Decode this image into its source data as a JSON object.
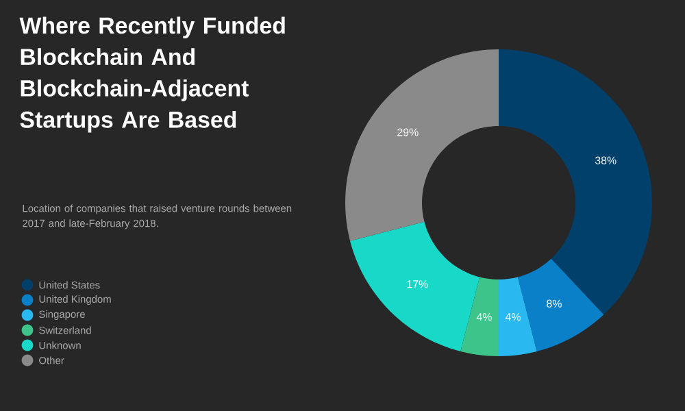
{
  "chart_data": {
    "type": "donut",
    "title": "Where Recently Funded Blockchain And Blockchain-Adjacent Startups Are Based",
    "subtitle": "Location of companies that raised venture rounds between 2017 and late-February 2018.",
    "categories": [
      "United States",
      "United Kingdom",
      "Singapore",
      "Switzerland",
      "Unknown",
      "Other"
    ],
    "values": [
      38,
      8,
      4,
      4,
      17,
      29
    ],
    "value_labels": [
      "38%",
      "8%",
      "4%",
      "4%",
      "17%",
      "29%"
    ],
    "colors": [
      "#00406b",
      "#0a80c8",
      "#2ab8f0",
      "#3cc48a",
      "#18d8c8",
      "#8a8a8a"
    ],
    "legend": "left"
  }
}
